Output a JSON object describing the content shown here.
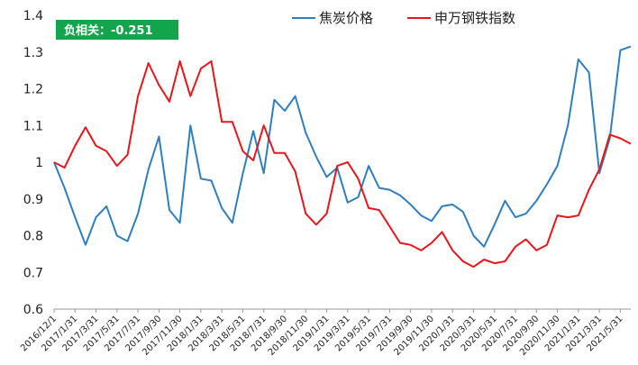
{
  "chart_data": {
    "type": "line",
    "annotation": "负相关：-0.251",
    "colors": {
      "coke": "#2E7FC1",
      "steel": "#E8161B",
      "badge": "#13A54B",
      "axis": "#9A9A9A"
    },
    "ylim": [
      0.6,
      1.4
    ],
    "y_ticks": [
      "0.6",
      "0.7",
      "0.8",
      "0.9",
      "1",
      "1.1",
      "1.2",
      "1.3",
      "1.4"
    ],
    "x_tick_labels": [
      "2016/12/1",
      "2017/1/31",
      "2017/3/31",
      "2017/5/31",
      "2017/7/31",
      "2017/9/30",
      "2017/11/30",
      "2018/1/31",
      "2018/3/31",
      "2018/5/31",
      "2018/7/31",
      "2018/9/30",
      "2018/11/30",
      "2019/1/31",
      "2019/3/31",
      "2019/5/31",
      "2019/7/31",
      "2019/9/30",
      "2019/11/30",
      "2020/1/31",
      "2020/3/31",
      "2020/5/31",
      "2020/7/31",
      "2020/9/30",
      "2020/11/30",
      "2021/1/31",
      "2021/3/31",
      "2021/5/31"
    ],
    "legend_position": "top-right",
    "series": [
      {
        "name": "焦炭价格",
        "color_key": "coke",
        "values": [
          1.0,
          0.93,
          0.85,
          0.775,
          0.85,
          0.88,
          0.8,
          0.785,
          0.86,
          0.98,
          1.07,
          0.87,
          0.835,
          1.1,
          0.955,
          0.95,
          0.875,
          0.835,
          0.97,
          1.085,
          0.97,
          1.17,
          1.14,
          1.18,
          1.08,
          1.015,
          0.96,
          0.985,
          0.89,
          0.905,
          0.99,
          0.93,
          0.925,
          0.91,
          0.885,
          0.855,
          0.84,
          0.88,
          0.885,
          0.865,
          0.8,
          0.77,
          0.83,
          0.895,
          0.85,
          0.86,
          0.895,
          0.94,
          0.99,
          1.1,
          1.28,
          1.245,
          0.97,
          1.065,
          1.305,
          1.315
        ]
      },
      {
        "name": "申万钢铁指数",
        "color_key": "steel",
        "values": [
          1.0,
          0.985,
          1.045,
          1.095,
          1.045,
          1.03,
          0.99,
          1.02,
          1.18,
          1.27,
          1.21,
          1.165,
          1.275,
          1.18,
          1.255,
          1.275,
          1.11,
          1.11,
          1.03,
          1.005,
          1.1,
          1.025,
          1.025,
          0.975,
          0.86,
          0.83,
          0.86,
          0.99,
          1.0,
          0.955,
          0.875,
          0.87,
          0.825,
          0.78,
          0.775,
          0.76,
          0.78,
          0.81,
          0.76,
          0.73,
          0.715,
          0.735,
          0.725,
          0.73,
          0.77,
          0.79,
          0.76,
          0.775,
          0.855,
          0.85,
          0.855,
          0.925,
          0.98,
          1.075,
          1.065,
          1.05
        ]
      }
    ]
  }
}
